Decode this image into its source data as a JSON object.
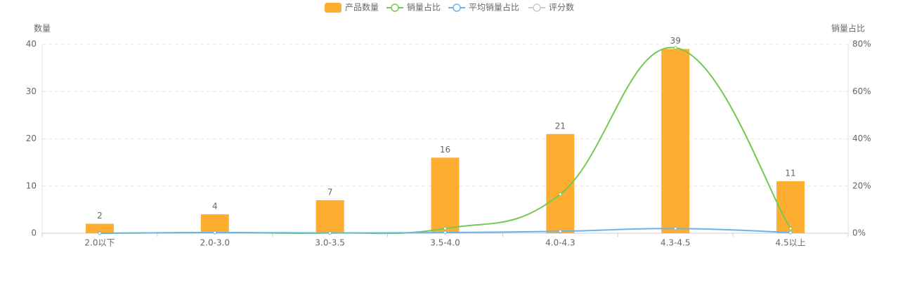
{
  "chart_data": {
    "type": "bar",
    "categories": [
      "2.0以下",
      "2.0-3.0",
      "3.0-3.5",
      "3.5-4.0",
      "4.0-4.3",
      "4.3-4.5",
      "4.5以上"
    ],
    "series": [
      {
        "name": "产品数量",
        "type": "bar",
        "color": "#fdad2f",
        "values": [
          2,
          4,
          7,
          16,
          21,
          39,
          11
        ]
      },
      {
        "name": "销量占比",
        "type": "line",
        "axis": "y2",
        "color": "#73c952",
        "values": [
          0,
          0.3,
          0.1,
          2,
          16.5,
          78.5,
          2
        ]
      },
      {
        "name": "平均销量占比",
        "type": "line",
        "axis": "y2",
        "color": "#6db3e8",
        "values": [
          0,
          0.3,
          0.1,
          0.3,
          0.8,
          2,
          0.3
        ]
      },
      {
        "name": "评分数",
        "type": "line",
        "color": "#cccccc",
        "hidden": true
      }
    ],
    "y_label": "数量",
    "y2_label": "销量占比",
    "ylim": [
      0,
      40
    ],
    "yticks": [
      0,
      10,
      20,
      30,
      40
    ],
    "y2lim": [
      0,
      80
    ],
    "y2ticks": [
      {
        "value": 0,
        "label": "0%"
      },
      {
        "value": 20,
        "label": "20%"
      },
      {
        "value": 40,
        "label": "40%"
      },
      {
        "value": 60,
        "label": "60%"
      },
      {
        "value": 80,
        "label": "80%"
      }
    ],
    "grid": true,
    "legend": "top"
  }
}
